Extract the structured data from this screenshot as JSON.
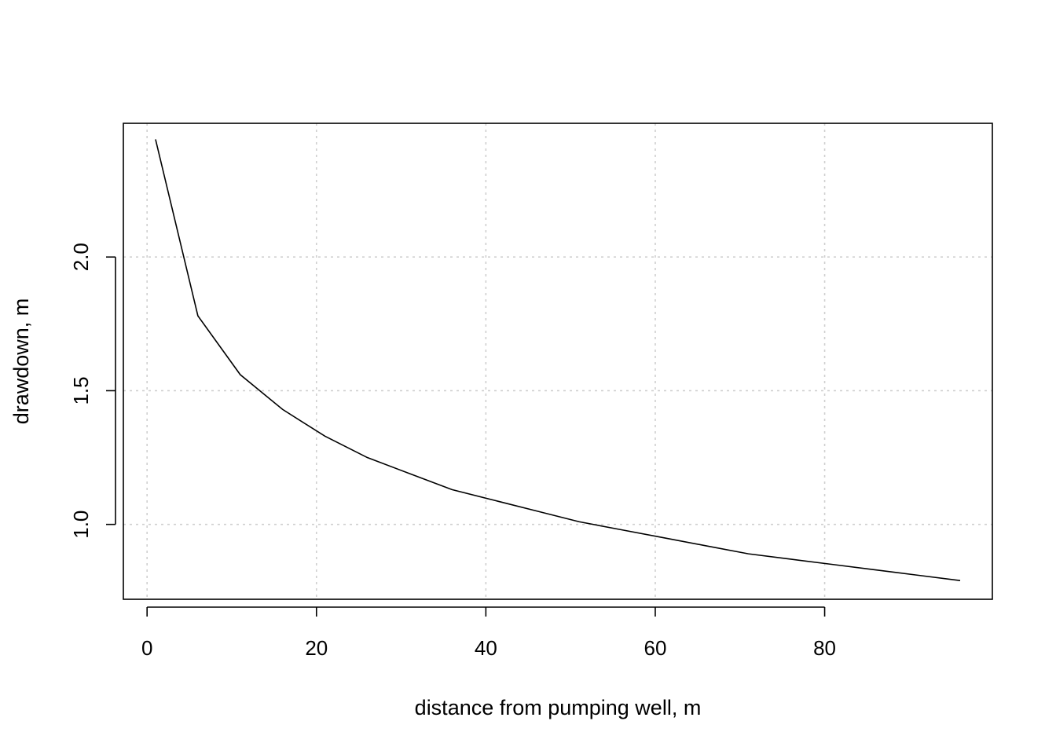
{
  "chart_data": {
    "type": "line",
    "title": "",
    "xlabel": "distance from pumping well, m",
    "ylabel": "drawdown, m",
    "xlim": [
      -2.8,
      99.8
    ],
    "ylim": [
      0.72,
      2.5
    ],
    "x_ticks": [
      0,
      20,
      40,
      60,
      80
    ],
    "x_tick_labels": [
      "0",
      "20",
      "40",
      "60",
      "80"
    ],
    "y_ticks": [
      1.0,
      1.5,
      2.0
    ],
    "y_tick_labels": [
      "1.0",
      "1.5",
      "2.0"
    ],
    "grid": true,
    "legend": "none",
    "line_color": "#000000",
    "grid_color": "#cfcfcf",
    "series": [
      {
        "x": [
          1,
          6,
          11,
          16,
          21,
          26,
          31,
          36,
          41,
          46,
          51,
          56,
          61,
          66,
          71,
          76,
          81,
          86,
          91,
          96
        ],
        "y": [
          2.44,
          1.78,
          1.56,
          1.43,
          1.33,
          1.25,
          1.19,
          1.13,
          1.09,
          1.05,
          1.01,
          0.98,
          0.95,
          0.92,
          0.89,
          0.87,
          0.85,
          0.83,
          0.81,
          0.79
        ]
      }
    ]
  }
}
